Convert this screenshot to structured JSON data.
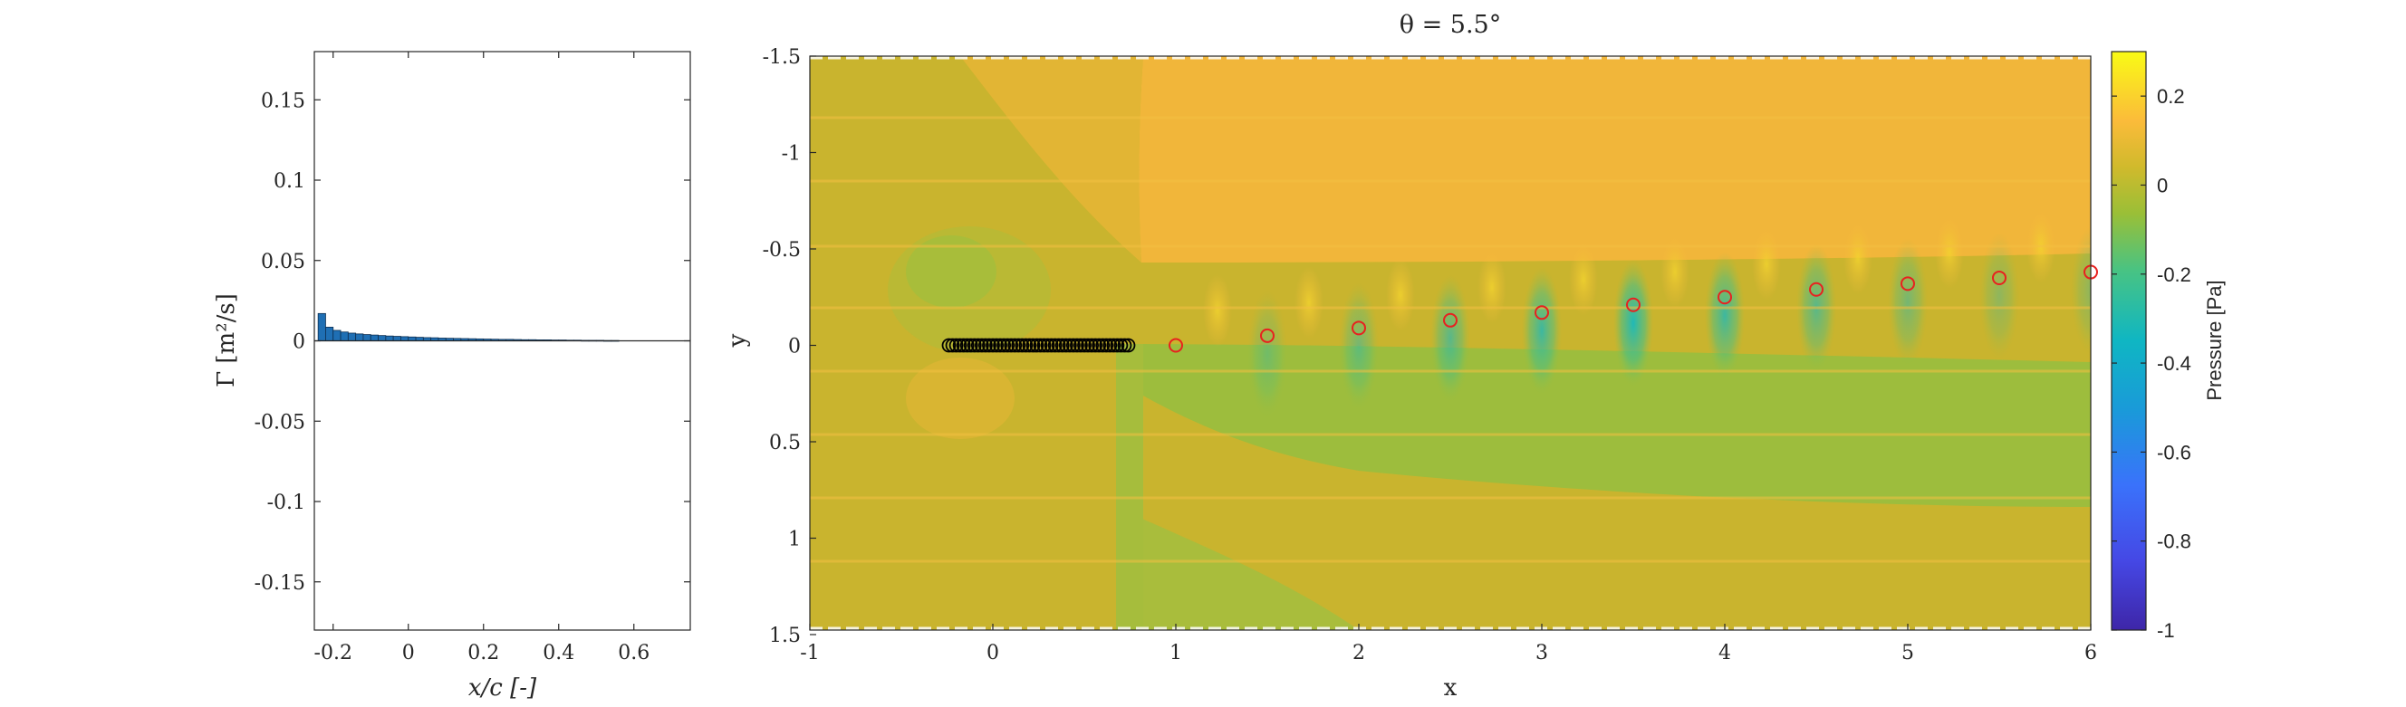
{
  "chart_data": [
    {
      "type": "bar",
      "xlabel": "x/c [-]",
      "ylabel": "Γ [m²/s]",
      "xlim": [
        -0.25,
        0.75
      ],
      "ylim": [
        -0.18,
        0.18
      ],
      "xticks": [
        -0.2,
        0,
        0.2,
        0.4,
        0.6
      ],
      "xtick_labels": [
        "-0.2",
        "0",
        "0.2",
        "0.4",
        "0.6"
      ],
      "yticks": [
        -0.15,
        -0.1,
        -0.05,
        0,
        0.05,
        0.1,
        0.15
      ],
      "ytick_labels": [
        "-0.15",
        "-0.1",
        "-0.05",
        "0",
        "0.05",
        "0.1",
        "0.15"
      ],
      "bar_color": "#1f6fb4",
      "x": [
        -0.24,
        -0.22,
        -0.2,
        -0.18,
        -0.16,
        -0.14,
        -0.12,
        -0.1,
        -0.08,
        -0.06,
        -0.04,
        -0.02,
        0.0,
        0.02,
        0.04,
        0.06,
        0.08,
        0.1,
        0.12,
        0.14,
        0.16,
        0.18,
        0.2,
        0.22,
        0.24,
        0.26,
        0.28,
        0.3,
        0.32,
        0.34,
        0.36,
        0.38,
        0.4,
        0.42,
        0.44,
        0.46,
        0.48,
        0.5,
        0.52,
        0.54
      ],
      "values": [
        0.017,
        0.0085,
        0.0065,
        0.0055,
        0.0048,
        0.0043,
        0.0039,
        0.0036,
        0.0033,
        0.003,
        0.0028,
        0.0026,
        0.0024,
        0.0022,
        0.002,
        0.0019,
        0.0017,
        0.0016,
        0.0015,
        0.0014,
        0.0013,
        0.0012,
        0.0011,
        0.001,
        0.0009,
        0.0009,
        0.0008,
        0.0007,
        0.0007,
        0.0006,
        0.0006,
        0.0005,
        0.0005,
        0.0004,
        0.0004,
        0.0003,
        0.0003,
        0.0003,
        0.0002,
        0.0002
      ]
    },
    {
      "type": "heatmap",
      "title": "θ = 5.5°",
      "xlabel": "x",
      "ylabel": "y",
      "xlim": [
        -1,
        6
      ],
      "ylim": [
        1.5,
        -1.5
      ],
      "y_reversed": true,
      "xticks": [
        -1,
        0,
        1,
        2,
        3,
        4,
        5,
        6
      ],
      "xtick_labels": [
        "-1",
        "0",
        "1",
        "2",
        "3",
        "4",
        "5",
        "6"
      ],
      "yticks": [
        -1.5,
        -1,
        -0.5,
        0,
        0.5,
        1,
        1.5
      ],
      "ytick_labels": [
        "-1.5",
        "-1",
        "-0.5",
        "0",
        "0.5",
        "1",
        "1.5"
      ],
      "colorbar": {
        "label": "Pressure [Pa]",
        "range": [
          -1,
          0.3
        ],
        "ticks": [
          -1,
          -0.8,
          -0.6,
          -0.4,
          -0.2,
          0,
          0.2
        ],
        "tick_labels": [
          "-1",
          "-0.8",
          "-0.6",
          "-0.4",
          "-0.2",
          "0",
          "0.2"
        ],
        "colormap": "parula"
      },
      "bound_vortices": {
        "color": "#000000",
        "x": [
          -0.24,
          -0.22,
          -0.2,
          -0.18,
          -0.16,
          -0.14,
          -0.12,
          -0.1,
          -0.08,
          -0.06,
          -0.04,
          -0.02,
          0.0,
          0.02,
          0.04,
          0.06,
          0.08,
          0.1,
          0.12,
          0.14,
          0.16,
          0.18,
          0.2,
          0.22,
          0.24,
          0.26,
          0.28,
          0.3,
          0.32,
          0.34,
          0.36,
          0.38,
          0.4,
          0.42,
          0.44,
          0.46,
          0.48,
          0.5,
          0.52,
          0.54,
          0.56,
          0.58,
          0.6,
          0.62,
          0.64,
          0.66,
          0.68,
          0.7,
          0.72,
          0.74
        ],
        "y": [
          0,
          0,
          0,
          0,
          0,
          0,
          0,
          0,
          0,
          0,
          0,
          0,
          0,
          0,
          0,
          0,
          0,
          0,
          0,
          0,
          0,
          0,
          0,
          0,
          0,
          0,
          0,
          0,
          0,
          0,
          0,
          0,
          0,
          0,
          0,
          0,
          0,
          0,
          0,
          0,
          0,
          0,
          0,
          0,
          0,
          0,
          0,
          0,
          0,
          0
        ]
      },
      "wake_vortices": {
        "color": "#e8211f",
        "x": [
          1,
          1.5,
          2,
          2.5,
          3,
          3.5,
          4,
          4.5,
          5,
          5.5,
          6
        ],
        "y": [
          0.0,
          -0.05,
          -0.09,
          -0.13,
          -0.17,
          -0.21,
          -0.25,
          -0.29,
          -0.32,
          -0.35,
          -0.38
        ]
      }
    }
  ]
}
